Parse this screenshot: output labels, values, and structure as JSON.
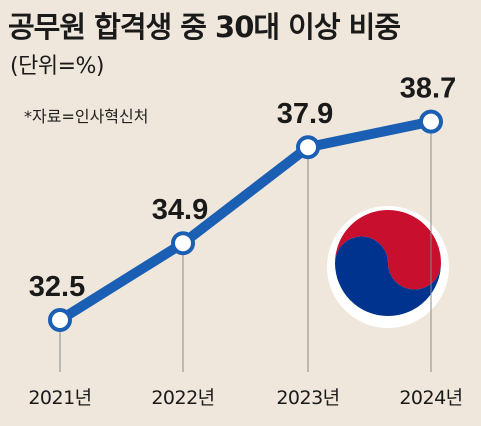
{
  "title": "공무원 합격생 중 30대 이상 비중",
  "unit_label": "(단위=%)",
  "source": "*자료=인사혁신처",
  "colors": {
    "line": "#1a5fb4",
    "background": "#efe7db",
    "marker_fill": "#ffffff"
  },
  "logo": "korean-government-taeguk-emblem",
  "chart_data": {
    "type": "line",
    "title": "공무원 합격생 중 30대 이상 비중",
    "xlabel": "",
    "ylabel": "",
    "unit": "%",
    "categories": [
      "2021년",
      "2022년",
      "2023년",
      "2024년"
    ],
    "values": [
      32.5,
      34.9,
      37.9,
      38.7
    ],
    "data_labels": [
      "32.5",
      "34.9",
      "37.9",
      "38.7"
    ],
    "ylim": [
      30,
      40
    ],
    "grid": false,
    "legend": "none"
  }
}
